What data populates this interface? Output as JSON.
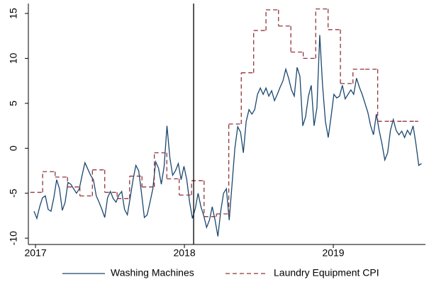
{
  "chart_data": {
    "type": "line",
    "xlim": [
      2016.952,
      2019.619
    ],
    "xticks": [
      2017,
      2018,
      2019
    ],
    "ylim": [
      -10.7,
      16.1
    ],
    "yticks": [
      -10,
      -5,
      0,
      5,
      10,
      15
    ],
    "vline": 2018.062,
    "legend": "bottom",
    "x": [
      2016.99,
      2017.009,
      2017.028,
      2017.047,
      2017.066,
      2017.085,
      2017.104,
      2017.123,
      2017.142,
      2017.161,
      2017.18,
      2017.199,
      2017.218,
      2017.237,
      2017.256,
      2017.275,
      2017.294,
      2017.313,
      2017.332,
      2017.351,
      2017.37,
      2017.389,
      2017.408,
      2017.427,
      2017.446,
      2017.465,
      2017.484,
      2017.503,
      2017.522,
      2017.541,
      2017.56,
      2017.579,
      2017.598,
      2017.617,
      2017.636,
      2017.655,
      2017.674,
      2017.693,
      2017.712,
      2017.731,
      2017.75,
      2017.769,
      2017.788,
      2017.807,
      2017.826,
      2017.845,
      2017.864,
      2017.883,
      2017.902,
      2017.921,
      2017.94,
      2017.959,
      2017.978,
      2017.997,
      2018.016,
      2018.035,
      2018.054,
      2018.073,
      2018.092,
      2018.111,
      2018.13,
      2018.149,
      2018.168,
      2018.187,
      2018.206,
      2018.225,
      2018.244,
      2018.263,
      2018.282,
      2018.301,
      2018.32,
      2018.339,
      2018.358,
      2018.377,
      2018.396,
      2018.415,
      2018.434,
      2018.453,
      2018.472,
      2018.491,
      2018.51,
      2018.529,
      2018.548,
      2018.567,
      2018.586,
      2018.605,
      2018.624,
      2018.643,
      2018.662,
      2018.681,
      2018.7,
      2018.719,
      2018.738,
      2018.757,
      2018.776,
      2018.795,
      2018.814,
      2018.833,
      2018.852,
      2018.871,
      2018.89,
      2018.909,
      2018.928,
      2018.947,
      2018.966,
      2018.985,
      2019.004,
      2019.023,
      2019.042,
      2019.061,
      2019.08,
      2019.099,
      2019.118,
      2019.137,
      2019.156,
      2019.175,
      2019.194,
      2019.213,
      2019.232,
      2019.251,
      2019.27,
      2019.289,
      2019.308,
      2019.327,
      2019.346,
      2019.365,
      2019.384,
      2019.403,
      2019.422,
      2019.441,
      2019.46,
      2019.479,
      2019.498,
      2019.517,
      2019.536,
      2019.555,
      2019.574,
      2019.593
    ],
    "series": [
      {
        "name": "Washing Machines",
        "color": "#1a476f",
        "values": [
          -7.0,
          -7.8,
          -6.5,
          -5.5,
          -5.3,
          -6.8,
          -7.0,
          -5.5,
          -3.5,
          -4.5,
          -6.9,
          -6.0,
          -3.8,
          -4.0,
          -4.5,
          -5.0,
          -4.5,
          -3.0,
          -1.6,
          -2.3,
          -3.0,
          -3.5,
          -5.3,
          -6.0,
          -6.8,
          -7.7,
          -5.5,
          -4.8,
          -5.6,
          -6.0,
          -5.2,
          -4.8,
          -6.8,
          -7.4,
          -5.5,
          -3.5,
          -1.9,
          -2.5,
          -5.0,
          -7.7,
          -7.4,
          -6.0,
          -4.5,
          -1.5,
          -2.2,
          -4.0,
          -2.0,
          2.5,
          -1.0,
          -3.0,
          -2.5,
          -1.7,
          -3.5,
          -2.0,
          -3.5,
          -6.0,
          -7.8,
          -6.7,
          -5.0,
          -6.5,
          -7.5,
          -8.8,
          -8.0,
          -6.5,
          -8.0,
          -9.8,
          -7.0,
          -5.0,
          -4.5,
          -8.0,
          -4.0,
          0.0,
          2.4,
          1.8,
          -0.5,
          3.0,
          4.3,
          3.8,
          4.3,
          6.0,
          6.7,
          6.0,
          6.7,
          5.8,
          6.4,
          5.3,
          6.0,
          6.8,
          7.5,
          8.8,
          7.8,
          6.5,
          5.8,
          9.0,
          8.0,
          2.5,
          3.5,
          5.8,
          7.0,
          2.5,
          4.5,
          12.6,
          7.0,
          3.0,
          1.2,
          3.5,
          6.0,
          5.6,
          5.8,
          7.0,
          5.5,
          6.0,
          6.5,
          6.0,
          7.8,
          6.8,
          6.0,
          5.0,
          4.0,
          2.5,
          1.5,
          3.8,
          2.0,
          0.5,
          -1.3,
          -0.5,
          2.0,
          3.2,
          2.0,
          1.5,
          1.9,
          1.2,
          2.0,
          1.5,
          2.5,
          0.5,
          -1.9,
          -1.7
        ]
      },
      {
        "name": "Laundry Equipment CPI",
        "color": "#90353b",
        "dash": true,
        "step": true,
        "x": [
          2016.965,
          2017.048,
          2017.132,
          2017.215,
          2017.298,
          2017.382,
          2017.465,
          2017.548,
          2017.632,
          2017.715,
          2017.798,
          2017.882,
          2017.965,
          2018.048,
          2018.132,
          2018.215,
          2018.298,
          2018.382,
          2018.465,
          2018.548,
          2018.632,
          2018.715,
          2018.798,
          2018.882,
          2018.965,
          2019.048,
          2019.132,
          2019.215,
          2019.298,
          2019.382,
          2019.465,
          2019.548,
          2019.57
        ],
        "values": [
          -4.9,
          -2.6,
          -3.2,
          -4.3,
          -5.3,
          -2.4,
          -4.9,
          -5.6,
          -3.1,
          -4.3,
          -0.5,
          -3.4,
          -5.2,
          -3.6,
          -7.6,
          -7.3,
          2.7,
          8.4,
          13.1,
          15.4,
          13.6,
          10.7,
          10.0,
          15.5,
          13.2,
          7.2,
          8.8,
          8.8,
          3.0,
          3.0,
          3.0,
          3.0,
          3.0
        ]
      }
    ]
  }
}
